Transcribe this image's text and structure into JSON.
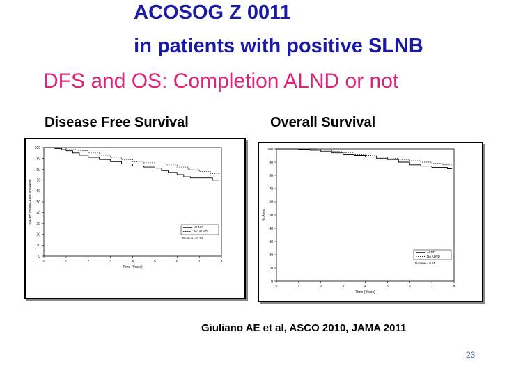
{
  "slide": {
    "title_line1": "ACOSOG Z 0011",
    "title_line2": "in patients with positive SLNB",
    "subtitle": "DFS and OS: Completion ALND or not",
    "citation": "Giuliano AE et al, ASCO 2010, JAMA 2011",
    "page_number": "23",
    "colors": {
      "title": "#1a1aa6",
      "subtitle": "#e0227a",
      "page_number": "#4a68b5"
    }
  },
  "chart_data": [
    {
      "type": "line",
      "title": "Disease Free Survival",
      "xlabel": "Time (Years)",
      "ylabel": "% Recurrence-Free and Alive",
      "xlim": [
        0,
        8
      ],
      "ylim": [
        0,
        100
      ],
      "x_ticks": [
        "0",
        "1",
        "2",
        "3",
        "4",
        "5",
        "6",
        "7",
        "8"
      ],
      "y_ticks": [
        "0",
        "10",
        "20",
        "30",
        "40",
        "50",
        "60",
        "70",
        "80",
        "90",
        "100"
      ],
      "annotation": "P-value = 0.14",
      "series": [
        {
          "name": "ALND",
          "style": "solid",
          "points": [
            [
              0,
              100
            ],
            [
              0.3,
              100
            ],
            [
              0.5,
              99
            ],
            [
              0.8,
              98
            ],
            [
              1.0,
              97
            ],
            [
              1.3,
              95
            ],
            [
              1.6,
              93
            ],
            [
              2.0,
              91
            ],
            [
              2.5,
              89
            ],
            [
              3.0,
              87
            ],
            [
              3.5,
              85
            ],
            [
              4.0,
              83
            ],
            [
              4.5,
              82
            ],
            [
              5.0,
              81
            ],
            [
              5.3,
              79
            ],
            [
              5.6,
              77
            ],
            [
              6.0,
              75
            ],
            [
              6.3,
              73
            ],
            [
              6.6,
              72
            ],
            [
              7.0,
              72
            ],
            [
              7.4,
              72
            ],
            [
              7.6,
              70
            ],
            [
              7.9,
              70
            ]
          ]
        },
        {
          "name": "No ALND",
          "style": "dotted",
          "points": [
            [
              0,
              100
            ],
            [
              0.5,
              100
            ],
            [
              1.0,
              98
            ],
            [
              1.5,
              97
            ],
            [
              2.0,
              95
            ],
            [
              2.5,
              93
            ],
            [
              3.0,
              91
            ],
            [
              3.5,
              89
            ],
            [
              4.0,
              87
            ],
            [
              4.5,
              86
            ],
            [
              5.0,
              85
            ],
            [
              5.5,
              84
            ],
            [
              6.0,
              82
            ],
            [
              6.5,
              80
            ],
            [
              7.0,
              78
            ],
            [
              7.5,
              76
            ],
            [
              7.9,
              75
            ]
          ]
        }
      ],
      "legend": {
        "position": "lower-right",
        "entries": [
          "ALND",
          "No ALND"
        ]
      }
    },
    {
      "type": "line",
      "title": "Overall Survival",
      "xlabel": "Time (Years)",
      "ylabel": "% Alive",
      "xlim": [
        0,
        8
      ],
      "ylim": [
        0,
        100
      ],
      "x_ticks": [
        "0",
        "1",
        "2",
        "3",
        "4",
        "5",
        "6",
        "7",
        "8"
      ],
      "y_ticks": [
        "0",
        "10",
        "20",
        "30",
        "40",
        "50",
        "60",
        "70",
        "80",
        "90",
        "100"
      ],
      "annotation": "P-value = 0.25",
      "series": [
        {
          "name": "ALND",
          "style": "solid",
          "points": [
            [
              0,
              100
            ],
            [
              0.5,
              100
            ],
            [
              1.0,
              99.5
            ],
            [
              1.5,
              99
            ],
            [
              2.0,
              98
            ],
            [
              2.5,
              97
            ],
            [
              3.0,
              96
            ],
            [
              3.5,
              95
            ],
            [
              4.0,
              94
            ],
            [
              4.5,
              93
            ],
            [
              5.0,
              92
            ],
            [
              5.5,
              90
            ],
            [
              6.0,
              88
            ],
            [
              6.5,
              87
            ],
            [
              7.0,
              86
            ],
            [
              7.5,
              86
            ],
            [
              7.7,
              85
            ],
            [
              7.9,
              85
            ]
          ]
        },
        {
          "name": "No ALND",
          "style": "dotted",
          "points": [
            [
              0,
              100
            ],
            [
              0.5,
              100
            ],
            [
              1.0,
              100
            ],
            [
              1.5,
              99.5
            ],
            [
              2.0,
              99
            ],
            [
              2.5,
              98
            ],
            [
              3.0,
              97
            ],
            [
              3.5,
              96
            ],
            [
              4.0,
              95
            ],
            [
              4.5,
              94
            ],
            [
              5.0,
              93
            ],
            [
              5.5,
              92
            ],
            [
              6.0,
              91
            ],
            [
              6.5,
              90
            ],
            [
              7.0,
              89
            ],
            [
              7.5,
              88
            ],
            [
              7.9,
              88
            ]
          ]
        }
      ],
      "legend": {
        "position": "lower-right",
        "entries": [
          "ALND",
          "No ALND"
        ]
      }
    }
  ]
}
